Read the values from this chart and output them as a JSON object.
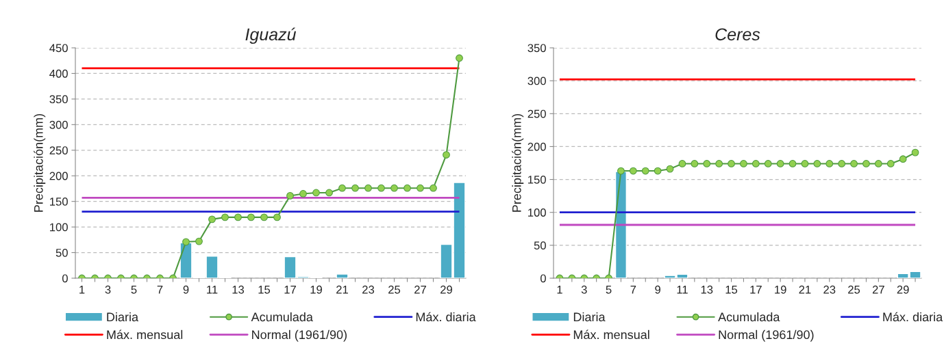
{
  "chart_data": [
    {
      "type": "bar",
      "title": "Iguazú",
      "ylabel": "Precipitación(mm)",
      "categories": [
        "1",
        null,
        "3",
        null,
        "5",
        null,
        "7",
        null,
        "9",
        null,
        "11",
        null,
        "13",
        null,
        "15",
        null,
        "17",
        null,
        "19",
        null,
        "21",
        null,
        "23",
        null,
        "25",
        null,
        "27",
        null,
        "29",
        null
      ],
      "series": [
        {
          "name": "Diaria",
          "color": "#4bacc6",
          "values": [
            null,
            null,
            null,
            null,
            null,
            null,
            null,
            null,
            69,
            2,
            43,
            2,
            null,
            null,
            null,
            null,
            42,
            3,
            2,
            null,
            8,
            null,
            null,
            null,
            null,
            null,
            null,
            null,
            66,
            187
          ]
        },
        {
          "name": "Acumulada",
          "type": "line",
          "color": "#4e9a3f",
          "marker": "circle",
          "values": [
            0,
            0,
            0,
            0,
            0,
            0,
            0,
            0,
            71,
            72,
            115,
            119,
            119,
            119,
            119,
            119,
            161,
            165,
            167,
            167,
            176,
            176,
            176,
            176,
            176,
            176,
            176,
            176,
            241,
            430
          ]
        }
      ],
      "ref_lines": [
        {
          "axis": "y",
          "value": 130,
          "label": "Máx. diaria",
          "color": "#1f1fd0"
        },
        {
          "axis": "y",
          "value": 410,
          "label": "Máx. mensual",
          "color": "#ff0000"
        },
        {
          "axis": "y",
          "value": 157,
          "label": "Normal (1961/90)",
          "color": "#c048c0"
        }
      ],
      "ylim": [
        0,
        450
      ],
      "yticks": [
        0,
        50,
        100,
        150,
        200,
        250,
        300,
        350,
        400,
        450
      ],
      "grid": "y",
      "legend": "bottom"
    },
    {
      "type": "bar",
      "title": "Ceres",
      "ylabel": "Precipitación(mm)",
      "categories": [
        "1",
        null,
        "3",
        null,
        "5",
        null,
        "7",
        null,
        "9",
        null,
        "11",
        null,
        "13",
        null,
        "15",
        null,
        "17",
        null,
        "19",
        null,
        "21",
        null,
        "23",
        null,
        "25",
        null,
        "27",
        null,
        "29",
        null
      ],
      "series": [
        {
          "name": "Diaria",
          "color": "#4bacc6",
          "values": [
            null,
            null,
            null,
            null,
            null,
            162,
            null,
            null,
            null,
            4,
            6,
            null,
            null,
            null,
            null,
            null,
            null,
            null,
            null,
            null,
            null,
            null,
            null,
            null,
            null,
            null,
            null,
            null,
            7,
            10
          ]
        },
        {
          "name": "Acumulada",
          "type": "line",
          "color": "#4e9a3f",
          "marker": "circle",
          "values": [
            0,
            0,
            0,
            0,
            0,
            163,
            163,
            163,
            163,
            166,
            174,
            174,
            174,
            174,
            174,
            174,
            174,
            174,
            174,
            174,
            174,
            174,
            174,
            174,
            174,
            174,
            174,
            174,
            181,
            191
          ]
        }
      ],
      "ref_lines": [
        {
          "axis": "y",
          "value": 100,
          "label": "Máx. diaria",
          "color": "#1f1fd0"
        },
        {
          "axis": "y",
          "value": 302,
          "label": "Máx. mensual",
          "color": "#ff0000"
        },
        {
          "axis": "y",
          "value": 81,
          "label": "Normal (1961/90)",
          "color": "#c048c0"
        }
      ],
      "ylim": [
        0,
        350
      ],
      "yticks": [
        0,
        50,
        100,
        150,
        200,
        250,
        300,
        350
      ],
      "grid": "y",
      "legend": "bottom"
    }
  ]
}
